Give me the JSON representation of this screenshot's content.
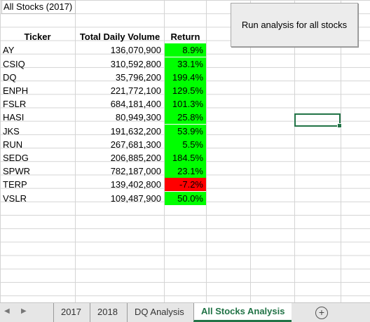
{
  "sheet": {
    "title_cell": "All Stocks (2017)",
    "headers": [
      "Ticker",
      "Total Daily Volume",
      "Return"
    ],
    "rows": [
      {
        "ticker": "AY",
        "volume": "136,070,900",
        "ret": "8.9%",
        "status": "positive"
      },
      {
        "ticker": "CSIQ",
        "volume": "310,592,800",
        "ret": "33.1%",
        "status": "positive"
      },
      {
        "ticker": "DQ",
        "volume": "35,796,200",
        "ret": "199.4%",
        "status": "positive"
      },
      {
        "ticker": "ENPH",
        "volume": "221,772,100",
        "ret": "129.5%",
        "status": "positive"
      },
      {
        "ticker": "FSLR",
        "volume": "684,181,400",
        "ret": "101.3%",
        "status": "positive"
      },
      {
        "ticker": "HASI",
        "volume": "80,949,300",
        "ret": "25.8%",
        "status": "positive"
      },
      {
        "ticker": "JKS",
        "volume": "191,632,200",
        "ret": "53.9%",
        "status": "positive"
      },
      {
        "ticker": "RUN",
        "volume": "267,681,300",
        "ret": "5.5%",
        "status": "positive"
      },
      {
        "ticker": "SEDG",
        "volume": "206,885,200",
        "ret": "184.5%",
        "status": "positive"
      },
      {
        "ticker": "SPWR",
        "volume": "782,187,000",
        "ret": "23.1%",
        "status": "positive"
      },
      {
        "ticker": "TERP",
        "volume": "139,402,800",
        "ret": "-7.2%",
        "status": "negative"
      },
      {
        "ticker": "VSLR",
        "volume": "109,487,900",
        "ret": "50.0%",
        "status": "positive"
      }
    ],
    "colors": {
      "positive": "#00ff00",
      "negative": "#ff0000",
      "accent": "#217346"
    }
  },
  "button": {
    "label": "Run analysis for all stocks"
  },
  "tabs": {
    "items": [
      "2017",
      "2018",
      "DQ Analysis",
      "All Stocks Analysis"
    ],
    "active": "All Stocks Analysis",
    "add_icon": "plus-circle-icon",
    "prev_icon": "triangle-left-icon",
    "next_icon": "triangle-right-icon"
  }
}
